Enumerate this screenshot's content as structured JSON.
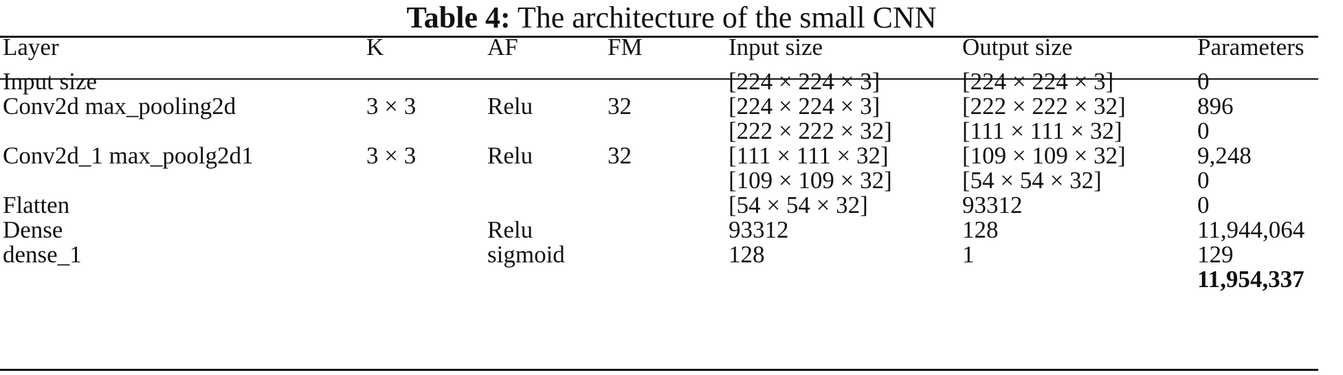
{
  "caption": {
    "label": "Table 4:",
    "text": "The architecture of the small CNN"
  },
  "table": {
    "headers": [
      "Layer",
      "K",
      "AF",
      "FM",
      "Input size",
      "Output size",
      "Parameters"
    ],
    "rows": [
      [
        "Input size",
        "",
        "",
        "",
        "[224 × 224 × 3]",
        "[224 × 224 × 3]",
        "0"
      ],
      [
        "Conv2d max_pooling2d",
        "3 × 3",
        "Relu",
        "32",
        "[224 × 224 × 3]",
        "[222 × 222 × 32]",
        "896"
      ],
      [
        "",
        "",
        "",
        "",
        "[222 × 222 × 32]",
        "[111 × 111 × 32]",
        "0"
      ],
      [
        "Conv2d_1 max_poolg2d1",
        "3 × 3",
        "Relu",
        "32",
        "[111 × 111 × 32]",
        "[109 × 109 × 32]",
        "9,248"
      ],
      [
        "",
        "",
        "",
        "",
        "[109 × 109 × 32]",
        "[54 × 54 × 32]",
        "0"
      ],
      [
        "Flatten",
        "",
        "",
        "",
        "[54 × 54 × 32]",
        "93312",
        "0"
      ],
      [
        "Dense",
        "",
        "Relu",
        "",
        "93312",
        "128",
        "11,944,064"
      ],
      [
        "dense_1",
        "",
        "sigmoid",
        "",
        "128",
        "1",
        "129"
      ]
    ],
    "total": "11,954,337"
  }
}
